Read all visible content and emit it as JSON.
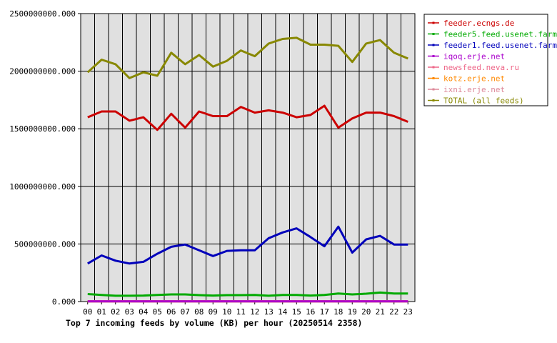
{
  "chart_data": {
    "type": "line",
    "title": "Top 7 incoming feeds by volume (KB) per hour (20250514 2358)",
    "xlabel": "",
    "ylabel": "",
    "categories": [
      "00",
      "01",
      "02",
      "03",
      "04",
      "05",
      "06",
      "07",
      "08",
      "09",
      "10",
      "11",
      "12",
      "13",
      "14",
      "15",
      "16",
      "17",
      "18",
      "19",
      "20",
      "21",
      "22",
      "23"
    ],
    "ylim": [
      0,
      2500000000
    ],
    "yticks": [
      "0.000",
      "500000000.000",
      "1000000000.000",
      "1500000000.000",
      "2000000000.000",
      "2500000000.000"
    ],
    "grid": true,
    "legend_placement": "right",
    "series": [
      {
        "name": "feeder.ecngs.de",
        "color": "#cc0000",
        "values": [
          1600000000,
          1650000000,
          1650000000,
          1570000000,
          1600000000,
          1490000000,
          1630000000,
          1510000000,
          1650000000,
          1610000000,
          1610000000,
          1690000000,
          1640000000,
          1660000000,
          1640000000,
          1600000000,
          1620000000,
          1700000000,
          1510000000,
          1590000000,
          1640000000,
          1640000000,
          1610000000,
          1560000000
        ]
      },
      {
        "name": "feeder5.feed.usenet.farm",
        "color": "#00aa00",
        "values": [
          65000000,
          58000000,
          50000000,
          50000000,
          52000000,
          58000000,
          62000000,
          62000000,
          56000000,
          52000000,
          56000000,
          56000000,
          57000000,
          50000000,
          58000000,
          57000000,
          52000000,
          58000000,
          70000000,
          62000000,
          68000000,
          78000000,
          70000000,
          70000000
        ]
      },
      {
        "name": "feeder1.feed.usenet.farm",
        "color": "#0000bb",
        "values": [
          330000000,
          400000000,
          355000000,
          330000000,
          345000000,
          415000000,
          475000000,
          495000000,
          445000000,
          395000000,
          440000000,
          445000000,
          445000000,
          550000000,
          600000000,
          635000000,
          560000000,
          480000000,
          650000000,
          425000000,
          540000000,
          570000000,
          495000000,
          495000000
        ]
      },
      {
        "name": "iqoq.erje.net",
        "color": "#aa00cc",
        "values": [
          2000000,
          2000000,
          2000000,
          2000000,
          2000000,
          2000000,
          2000000,
          2000000,
          2000000,
          2000000,
          2000000,
          2000000,
          2000000,
          2000000,
          2000000,
          2000000,
          2000000,
          2000000,
          2000000,
          2000000,
          2000000,
          2000000,
          2000000,
          2000000
        ]
      },
      {
        "name": "newsfeed.neva.ru",
        "color": "#ee6688",
        "values": [
          3000000,
          3000000,
          3000000,
          3000000,
          3000000,
          3000000,
          3000000,
          3000000,
          3000000,
          3000000,
          3000000,
          3000000,
          3000000,
          3000000,
          3000000,
          3000000,
          3000000,
          3000000,
          3000000,
          3000000,
          3000000,
          3000000,
          3000000,
          3000000
        ]
      },
      {
        "name": "kotz.erje.net",
        "color": "#ff8800",
        "values": [
          2000000,
          2000000,
          2000000,
          2000000,
          2000000,
          2000000,
          2000000,
          2000000,
          2000000,
          2000000,
          2000000,
          2000000,
          2000000,
          2000000,
          2000000,
          2000000,
          2000000,
          2000000,
          2000000,
          2000000,
          2000000,
          2000000,
          2000000,
          2000000
        ]
      },
      {
        "name": "ixni.erje.net",
        "color": "#dd8899",
        "values": [
          1000000,
          1000000,
          1000000,
          1000000,
          1000000,
          1000000,
          1000000,
          1000000,
          1000000,
          1000000,
          1000000,
          1000000,
          1000000,
          1000000,
          1000000,
          1000000,
          1000000,
          1000000,
          1000000,
          1000000,
          1000000,
          1000000,
          1000000,
          1000000
        ]
      },
      {
        "name": "TOTAL (all feeds)",
        "color": "#888800",
        "values": [
          1990000000,
          2100000000,
          2060000000,
          1940000000,
          1990000000,
          1960000000,
          2160000000,
          2060000000,
          2140000000,
          2040000000,
          2090000000,
          2180000000,
          2130000000,
          2240000000,
          2280000000,
          2290000000,
          2230000000,
          2230000000,
          2220000000,
          2080000000,
          2240000000,
          2270000000,
          2160000000,
          2110000000
        ]
      }
    ]
  }
}
